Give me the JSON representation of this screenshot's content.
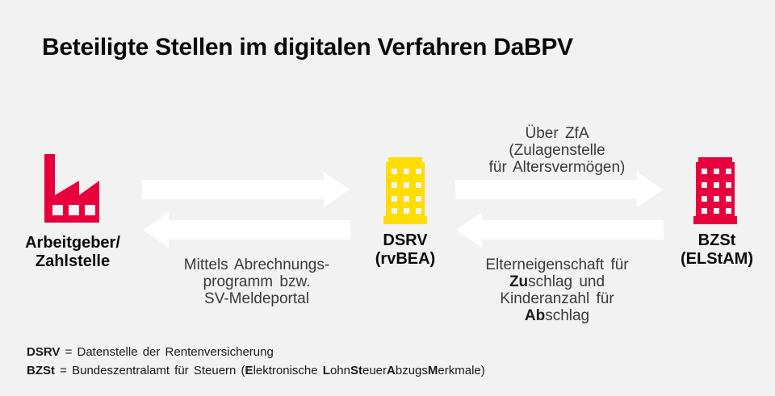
{
  "title": "Beteiligte Stellen im digitalen Verfahren DaBPV",
  "colors": {
    "background": "#f2f2f2",
    "red": "#e8003d",
    "yellow": "#ffdd00",
    "arrow": "#ffffff",
    "window": "#f2f2f2"
  },
  "nodes": {
    "employer": {
      "label": [
        "Arbeitgeber/",
        "Zahlstelle"
      ],
      "icon": "factory-icon"
    },
    "dsrv": {
      "label": [
        "DSRV",
        "(rvBEA)"
      ],
      "icon": "office-building-icon"
    },
    "bzst": {
      "label": [
        "BZSt",
        "(ELStAM)"
      ],
      "icon": "office-building-icon"
    }
  },
  "annotations": {
    "via_zfa": [
      "Über ZfA",
      "(Zulagenstelle",
      "für Altersvermögen)"
    ],
    "mittels": [
      "Mittels Abrechnungs-",
      "programm bzw.",
      "SV-Meldeportal"
    ],
    "eltern": [
      [
        "Elterneigenschaft für"
      ],
      [
        {
          "t": "Zu",
          "b": true
        },
        {
          "t": "schlag und"
        }
      ],
      [
        "Kinderanzahl für"
      ],
      [
        {
          "t": "Ab",
          "b": true
        },
        {
          "t": "schlag"
        }
      ]
    ]
  },
  "legend": {
    "line1": [
      [
        {
          "t": "DSRV",
          "b": true
        },
        {
          "t": " = Datenstelle der Rentenversicherung"
        }
      ]
    ],
    "line2": [
      [
        {
          "t": "BZSt",
          "b": true
        },
        {
          "t": " = Bundeszentralamt für Steuern ("
        },
        {
          "t": "E",
          "b": true
        },
        {
          "t": "lektronische "
        },
        {
          "t": "L",
          "b": true
        },
        {
          "t": "ohn"
        },
        {
          "t": "St",
          "b": true
        },
        {
          "t": "euer"
        },
        {
          "t": "A",
          "b": true
        },
        {
          "t": "bzugs"
        },
        {
          "t": "M",
          "b": true
        },
        {
          "t": "erkmale)"
        }
      ]
    ]
  }
}
